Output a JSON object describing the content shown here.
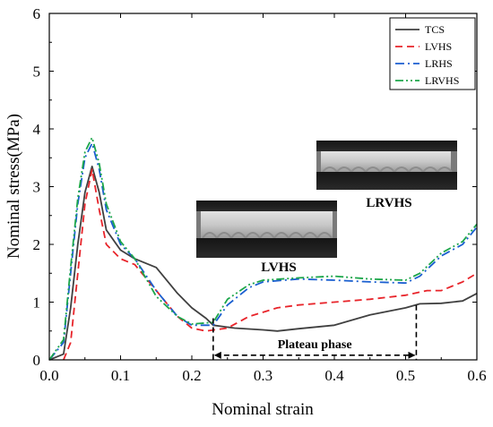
{
  "chart_data": {
    "type": "line",
    "xlabel": "Nominal strain",
    "ylabel": "Nominal stress(MPa)",
    "xlim": [
      0.0,
      0.6
    ],
    "ylim": [
      0,
      6
    ],
    "xticks": [
      "0.0",
      "0.1",
      "0.2",
      "0.3",
      "0.4",
      "0.5",
      "0.6"
    ],
    "yticks": [
      "0",
      "1",
      "2",
      "3",
      "4",
      "5",
      "6"
    ],
    "grid": false,
    "legend_position": "top-right",
    "series": [
      {
        "name": "TCS",
        "color": "#404040",
        "dash": "solid",
        "x": [
          0.0,
          0.02,
          0.03,
          0.04,
          0.05,
          0.06,
          0.07,
          0.08,
          0.1,
          0.12,
          0.15,
          0.18,
          0.2,
          0.22,
          0.23,
          0.26,
          0.3,
          0.32,
          0.35,
          0.4,
          0.45,
          0.5,
          0.52,
          0.55,
          0.58,
          0.6
        ],
        "y": [
          0,
          0.1,
          0.9,
          2.0,
          2.9,
          3.35,
          2.9,
          2.25,
          1.9,
          1.75,
          1.6,
          1.15,
          0.9,
          0.72,
          0.6,
          0.55,
          0.52,
          0.5,
          0.54,
          0.6,
          0.78,
          0.9,
          0.97,
          0.98,
          1.02,
          1.15
        ]
      },
      {
        "name": "LVHS",
        "color": "#e8242a",
        "dash": "dashed",
        "x": [
          0.02,
          0.03,
          0.04,
          0.05,
          0.06,
          0.07,
          0.08,
          0.1,
          0.12,
          0.15,
          0.18,
          0.2,
          0.22,
          0.25,
          0.28,
          0.32,
          0.35,
          0.4,
          0.45,
          0.5,
          0.53,
          0.55,
          0.58,
          0.6
        ],
        "y": [
          0,
          0.3,
          1.5,
          2.7,
          3.3,
          2.6,
          2.0,
          1.75,
          1.65,
          1.2,
          0.75,
          0.55,
          0.5,
          0.55,
          0.75,
          0.9,
          0.95,
          1.0,
          1.05,
          1.12,
          1.2,
          1.2,
          1.35,
          1.5
        ]
      },
      {
        "name": "LRHS",
        "color": "#1a5fd0",
        "dash": "dashdot",
        "x": [
          0.0,
          0.02,
          0.03,
          0.04,
          0.05,
          0.06,
          0.07,
          0.08,
          0.1,
          0.12,
          0.15,
          0.18,
          0.2,
          0.23,
          0.25,
          0.28,
          0.3,
          0.35,
          0.4,
          0.45,
          0.5,
          0.52,
          0.55,
          0.58,
          0.6
        ],
        "y": [
          0,
          0.3,
          1.5,
          2.7,
          3.5,
          3.75,
          3.3,
          2.6,
          2.0,
          1.75,
          1.2,
          0.75,
          0.6,
          0.6,
          0.95,
          1.25,
          1.35,
          1.4,
          1.38,
          1.35,
          1.33,
          1.45,
          1.8,
          2.0,
          2.3
        ]
      },
      {
        "name": "LRVHS",
        "color": "#1ca64a",
        "dash": "dashdotdot",
        "x": [
          0.0,
          0.02,
          0.03,
          0.04,
          0.05,
          0.06,
          0.07,
          0.08,
          0.1,
          0.12,
          0.15,
          0.18,
          0.2,
          0.23,
          0.25,
          0.28,
          0.3,
          0.35,
          0.4,
          0.45,
          0.5,
          0.52,
          0.55,
          0.58,
          0.6
        ],
        "y": [
          0,
          0.35,
          1.6,
          2.8,
          3.6,
          3.85,
          3.4,
          2.7,
          2.05,
          1.75,
          1.1,
          0.75,
          0.62,
          0.65,
          1.05,
          1.3,
          1.38,
          1.42,
          1.45,
          1.4,
          1.38,
          1.5,
          1.85,
          2.05,
          2.35
        ]
      }
    ],
    "annotations": {
      "inset_lvhs": "LVHS",
      "inset_lrvhs": "LRVHS",
      "plateau_label": "Plateau phase",
      "plateau_range": [
        0.23,
        0.515
      ]
    }
  }
}
